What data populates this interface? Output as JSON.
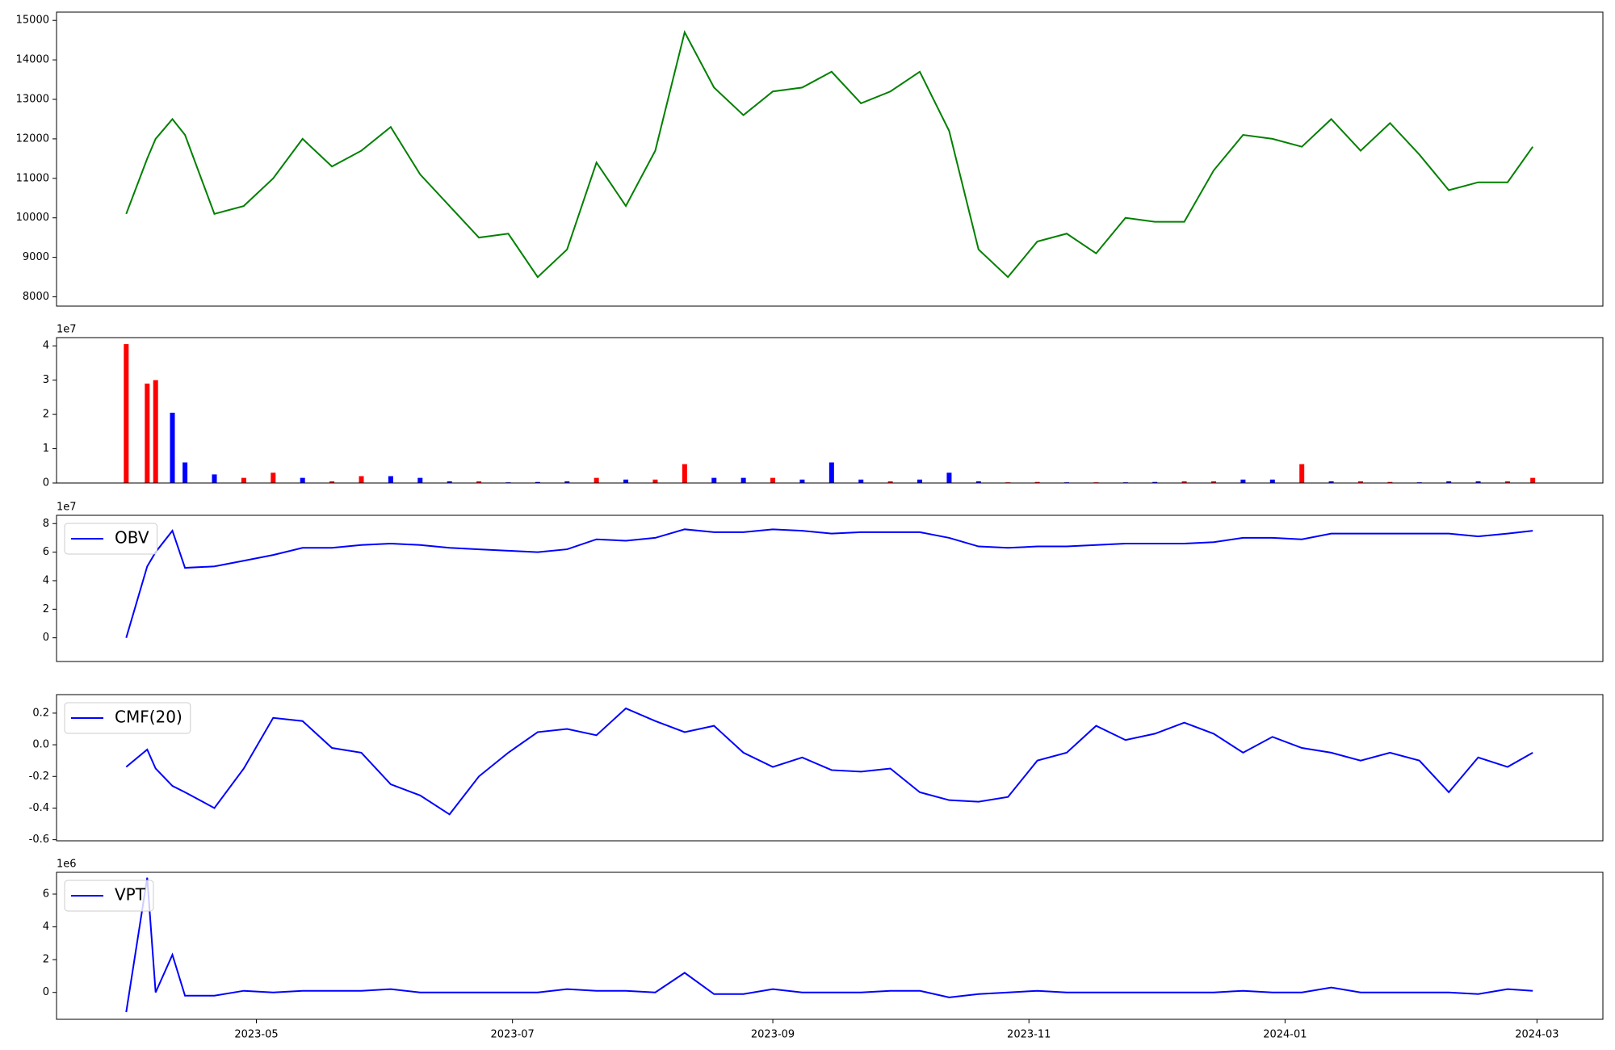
{
  "chart_data": [
    {
      "type": "line",
      "color": "green",
      "x": [
        -1,
        4,
        6,
        10,
        13,
        20,
        27,
        34,
        41,
        48,
        55,
        62,
        69,
        76,
        83,
        90,
        97,
        104,
        111,
        118,
        125,
        132,
        139,
        146,
        153,
        160,
        167,
        174,
        181,
        188,
        195,
        202,
        209,
        216,
        223,
        230,
        237,
        244,
        251,
        258,
        265,
        272,
        279,
        286,
        293,
        300,
        307,
        314,
        321,
        328,
        334
      ],
      "values": [
        10100,
        11500,
        12000,
        12500,
        12100,
        10100,
        10300,
        11000,
        12000,
        11300,
        11700,
        12300,
        11100,
        10300,
        9500,
        9600,
        8500,
        9200,
        11400,
        10300,
        11700,
        14700,
        13300,
        12600,
        13200,
        13300,
        13700,
        12900,
        13200,
        13700,
        12200,
        9200,
        8500,
        9400,
        9600,
        9100,
        10000,
        9900,
        9900,
        11200,
        12100,
        12000,
        11800,
        12500,
        11700,
        12400,
        11600,
        10700,
        10900,
        10900,
        11800
      ],
      "xlim": [
        -17.6,
        350.7
      ],
      "ylim": [
        7765,
        15209
      ],
      "yticks": [
        8000,
        9000,
        10000,
        11000,
        12000,
        13000,
        14000,
        15000
      ]
    },
    {
      "type": "bar",
      "y_offset_label": "1e7",
      "x": [
        -1,
        4,
        6,
        10,
        13,
        20,
        27,
        34,
        41,
        48,
        55,
        62,
        69,
        76,
        83,
        90,
        97,
        104,
        111,
        118,
        125,
        132,
        139,
        146,
        153,
        160,
        167,
        174,
        181,
        188,
        195,
        202,
        209,
        216,
        223,
        230,
        237,
        244,
        251,
        258,
        265,
        272,
        279,
        286,
        293,
        300,
        307,
        314,
        321,
        328,
        334
      ],
      "values": [
        4.05,
        2.9,
        3.0,
        2.05,
        0.6,
        0.25,
        0.15,
        0.3,
        0.15,
        0.05,
        0.2,
        0.2,
        0.15,
        0.05,
        0.05,
        0.02,
        0.03,
        0.05,
        0.15,
        0.1,
        0.1,
        0.55,
        0.15,
        0.15,
        0.15,
        0.1,
        0.6,
        0.1,
        0.05,
        0.1,
        0.3,
        0.05,
        0.02,
        0.03,
        0.02,
        0.02,
        0.02,
        0.03,
        0.05,
        0.05,
        0.1,
        0.1,
        0.55,
        0.05,
        0.05,
        0.03,
        0.02,
        0.05,
        0.05,
        0.05,
        0.15
      ],
      "bar_colors": [
        "red",
        "red",
        "red",
        "blue",
        "blue",
        "blue",
        "red",
        "red",
        "blue",
        "red",
        "red",
        "blue",
        "blue",
        "blue",
        "red",
        "blue",
        "blue",
        "blue",
        "red",
        "blue",
        "red",
        "red",
        "blue",
        "blue",
        "red",
        "blue",
        "blue",
        "blue",
        "red",
        "blue",
        "blue",
        "blue",
        "red",
        "red",
        "blue",
        "red",
        "blue",
        "blue",
        "red",
        "red",
        "blue",
        "blue",
        "red",
        "blue",
        "red",
        "red",
        "blue",
        "blue",
        "blue",
        "red",
        "red"
      ],
      "xlim": [
        -17.6,
        350.7
      ],
      "ylim": [
        0,
        4.24
      ],
      "yticks": [
        0,
        1,
        2,
        3,
        4
      ]
    },
    {
      "type": "line",
      "y_offset_label": "1e7",
      "legend": "upper left",
      "x": [
        -1,
        4,
        6,
        10,
        13,
        20,
        27,
        34,
        41,
        48,
        55,
        62,
        69,
        76,
        83,
        90,
        97,
        104,
        111,
        118,
        125,
        132,
        139,
        146,
        153,
        160,
        167,
        174,
        181,
        188,
        195,
        202,
        209,
        216,
        223,
        230,
        237,
        244,
        251,
        258,
        265,
        272,
        279,
        286,
        293,
        300,
        307,
        314,
        321,
        328,
        334
      ],
      "series": [
        {
          "name": "OBV",
          "color": "blue",
          "values": [
            0,
            5.0,
            6.0,
            7.5,
            4.9,
            5.0,
            5.4,
            5.8,
            6.3,
            6.3,
            6.5,
            6.6,
            6.5,
            6.3,
            6.2,
            6.1,
            6.0,
            6.2,
            6.9,
            6.8,
            7.0,
            7.6,
            7.4,
            7.4,
            7.6,
            7.5,
            7.3,
            7.4,
            7.4,
            7.4,
            7.0,
            6.4,
            6.3,
            6.4,
            6.4,
            6.5,
            6.6,
            6.6,
            6.6,
            6.7,
            7.0,
            7.0,
            6.9,
            7.3,
            7.3,
            7.3,
            7.3,
            7.3,
            7.1,
            7.3,
            7.5
          ]
        }
      ],
      "xlim": [
        -17.6,
        350.7
      ],
      "ylim": [
        -1.66,
        8.58
      ],
      "yticks": [
        0,
        2,
        4,
        6,
        8
      ]
    },
    {
      "type": "line",
      "legend": "upper left",
      "x": [
        -1,
        4,
        6,
        10,
        13,
        20,
        27,
        34,
        41,
        48,
        55,
        62,
        69,
        76,
        83,
        90,
        97,
        104,
        111,
        118,
        125,
        132,
        139,
        146,
        153,
        160,
        167,
        174,
        181,
        188,
        195,
        202,
        209,
        216,
        223,
        230,
        237,
        244,
        251,
        258,
        265,
        272,
        279,
        286,
        293,
        300,
        307,
        314,
        321,
        328,
        334
      ],
      "series": [
        {
          "name": "CMF(20)",
          "color": "blue",
          "values": [
            -0.14,
            -0.03,
            -0.15,
            -0.26,
            -0.3,
            -0.4,
            -0.15,
            0.17,
            0.15,
            -0.02,
            -0.05,
            -0.25,
            -0.32,
            -0.44,
            -0.2,
            -0.05,
            0.08,
            0.1,
            0.06,
            0.23,
            0.15,
            0.08,
            0.12,
            -0.05,
            -0.14,
            -0.08,
            -0.16,
            -0.17,
            -0.15,
            -0.3,
            -0.35,
            -0.36,
            -0.33,
            -0.1,
            -0.05,
            0.12,
            0.03,
            0.07,
            0.14,
            0.07,
            -0.05,
            0.05,
            -0.02,
            -0.05,
            -0.1,
            -0.05,
            -0.1,
            -0.3,
            -0.08,
            -0.14,
            -0.05
          ]
        }
      ],
      "xlim": [
        -17.6,
        350.7
      ],
      "ylim": [
        -0.607,
        0.317
      ],
      "yticks": [
        -0.6,
        -0.4,
        -0.2,
        {
          "value": 0,
          "label": "0.0"
        },
        0.2
      ]
    },
    {
      "type": "line",
      "y_offset_label": "1e6",
      "legend": "upper left",
      "x": [
        -1,
        4,
        6,
        10,
        13,
        20,
        27,
        34,
        41,
        48,
        55,
        62,
        69,
        76,
        83,
        90,
        97,
        104,
        111,
        118,
        125,
        132,
        139,
        146,
        153,
        160,
        167,
        174,
        181,
        188,
        195,
        202,
        209,
        216,
        223,
        230,
        237,
        244,
        251,
        258,
        265,
        272,
        279,
        286,
        293,
        300,
        307,
        314,
        321,
        328,
        334
      ],
      "series": [
        {
          "name": "VPT",
          "color": "blue",
          "values": [
            -1.2,
            7.0,
            0.0,
            2.3,
            -0.2,
            -0.2,
            0.1,
            0.0,
            0.1,
            0.1,
            0.1,
            0.2,
            0.0,
            0.0,
            0.0,
            0.0,
            0.0,
            0.2,
            0.1,
            0.1,
            0.0,
            1.2,
            -0.1,
            -0.1,
            0.2,
            0.0,
            0.0,
            0.0,
            0.1,
            0.1,
            -0.3,
            -0.1,
            0.0,
            0.1,
            0.0,
            0.0,
            0.0,
            0.0,
            0.0,
            0.0,
            0.1,
            0.0,
            0.0,
            0.3,
            0.0,
            0.0,
            0.0,
            0.0,
            -0.1,
            0.2,
            0.1
          ]
        }
      ],
      "xlim": [
        -17.6,
        350.7
      ],
      "ylim": [
        -1.64,
        7.33
      ],
      "yticks": [
        0,
        2,
        4,
        6
      ],
      "xticks": [
        {
          "value": 30,
          "label": "2023-05"
        },
        {
          "value": 91,
          "label": "2023-07"
        },
        {
          "value": 153,
          "label": "2023-09"
        },
        {
          "value": 214,
          "label": "2023-11"
        },
        {
          "value": 275,
          "label": "2024-01"
        },
        {
          "value": 335,
          "label": "2024-03"
        }
      ]
    }
  ]
}
